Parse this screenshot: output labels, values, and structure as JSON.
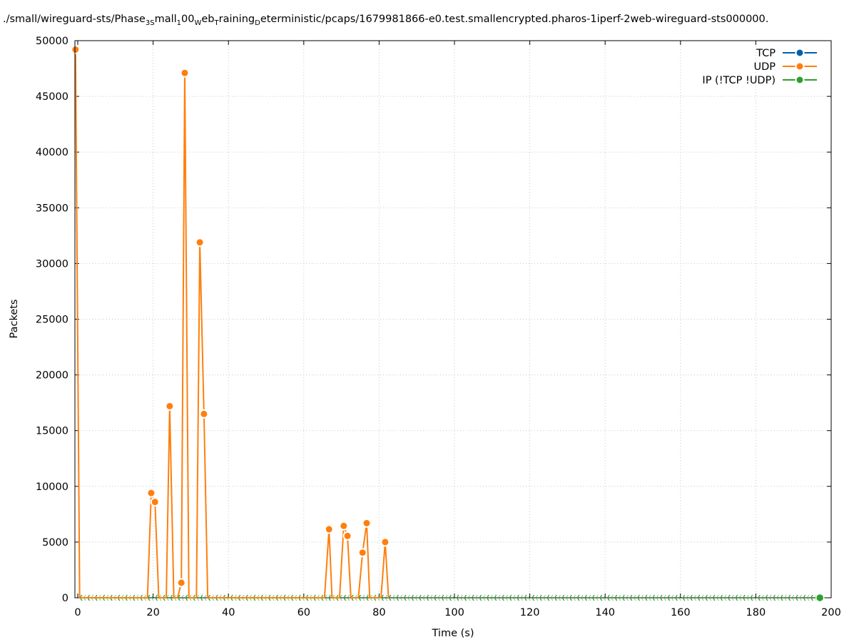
{
  "chart_data": {
    "type": "line",
    "title_parts": [
      {
        "text": "./small/wireguard-sts/Phase",
        "sub": false
      },
      {
        "text": "3S",
        "sub": true
      },
      {
        "text": "mall",
        "sub": false
      },
      {
        "text": "1",
        "sub": true
      },
      {
        "text": "00",
        "sub": false
      },
      {
        "text": "W",
        "sub": true
      },
      {
        "text": "eb",
        "sub": false
      },
      {
        "text": "T",
        "sub": true
      },
      {
        "text": "raining",
        "sub": false
      },
      {
        "text": "D",
        "sub": true
      },
      {
        "text": "eterministic/pcaps/1679981866-e0.test.smallencrypted.pharos-1iperf-2web-wireguard-sts000000.",
        "sub": false
      }
    ],
    "xlabel": "Time (s)",
    "ylabel": "Packets",
    "xlim": [
      -0.7,
      200
    ],
    "ylim": [
      0,
      50000
    ],
    "xticks": [
      0,
      20,
      40,
      60,
      80,
      100,
      120,
      140,
      160,
      180,
      200
    ],
    "yticks": [
      0,
      5000,
      10000,
      15000,
      20000,
      25000,
      30000,
      35000,
      40000,
      45000,
      50000
    ],
    "grid": true,
    "legend_position": "top-right",
    "series": [
      {
        "name": "TCP",
        "color": "#0060ad",
        "x": [],
        "y": []
      },
      {
        "name": "UDP",
        "color": "#ff7f0e",
        "x": [
          -0.6,
          0.5,
          18.5,
          19.5,
          20.5,
          21.5,
          23.5,
          24.4,
          25.5,
          26.5,
          27.5,
          28.4,
          29.5,
          31.5,
          32.4,
          33.5,
          34.5,
          65.5,
          66.7,
          67.5,
          69.5,
          70.6,
          71.6,
          72.5,
          74.5,
          75.6,
          76.7,
          77.5,
          80.5,
          81.6,
          82.5
        ],
        "y": [
          49200,
          0,
          0,
          9400,
          8600,
          0,
          0,
          17200,
          0,
          0,
          1350,
          47100,
          0,
          0,
          31900,
          16500,
          0,
          0,
          6150,
          0,
          0,
          6450,
          5550,
          0,
          0,
          4050,
          6700,
          0,
          0,
          5000,
          0
        ],
        "marked": [
          true,
          false,
          false,
          true,
          true,
          false,
          false,
          true,
          false,
          false,
          true,
          true,
          false,
          false,
          true,
          true,
          false,
          false,
          true,
          false,
          false,
          true,
          true,
          false,
          false,
          true,
          true,
          false,
          false,
          true,
          false
        ]
      },
      {
        "name": "IP (!TCP  !UDP)",
        "color": "#2ca02c",
        "x_range": [
          0,
          197
        ],
        "x_step": 1,
        "value": 0
      }
    ]
  }
}
